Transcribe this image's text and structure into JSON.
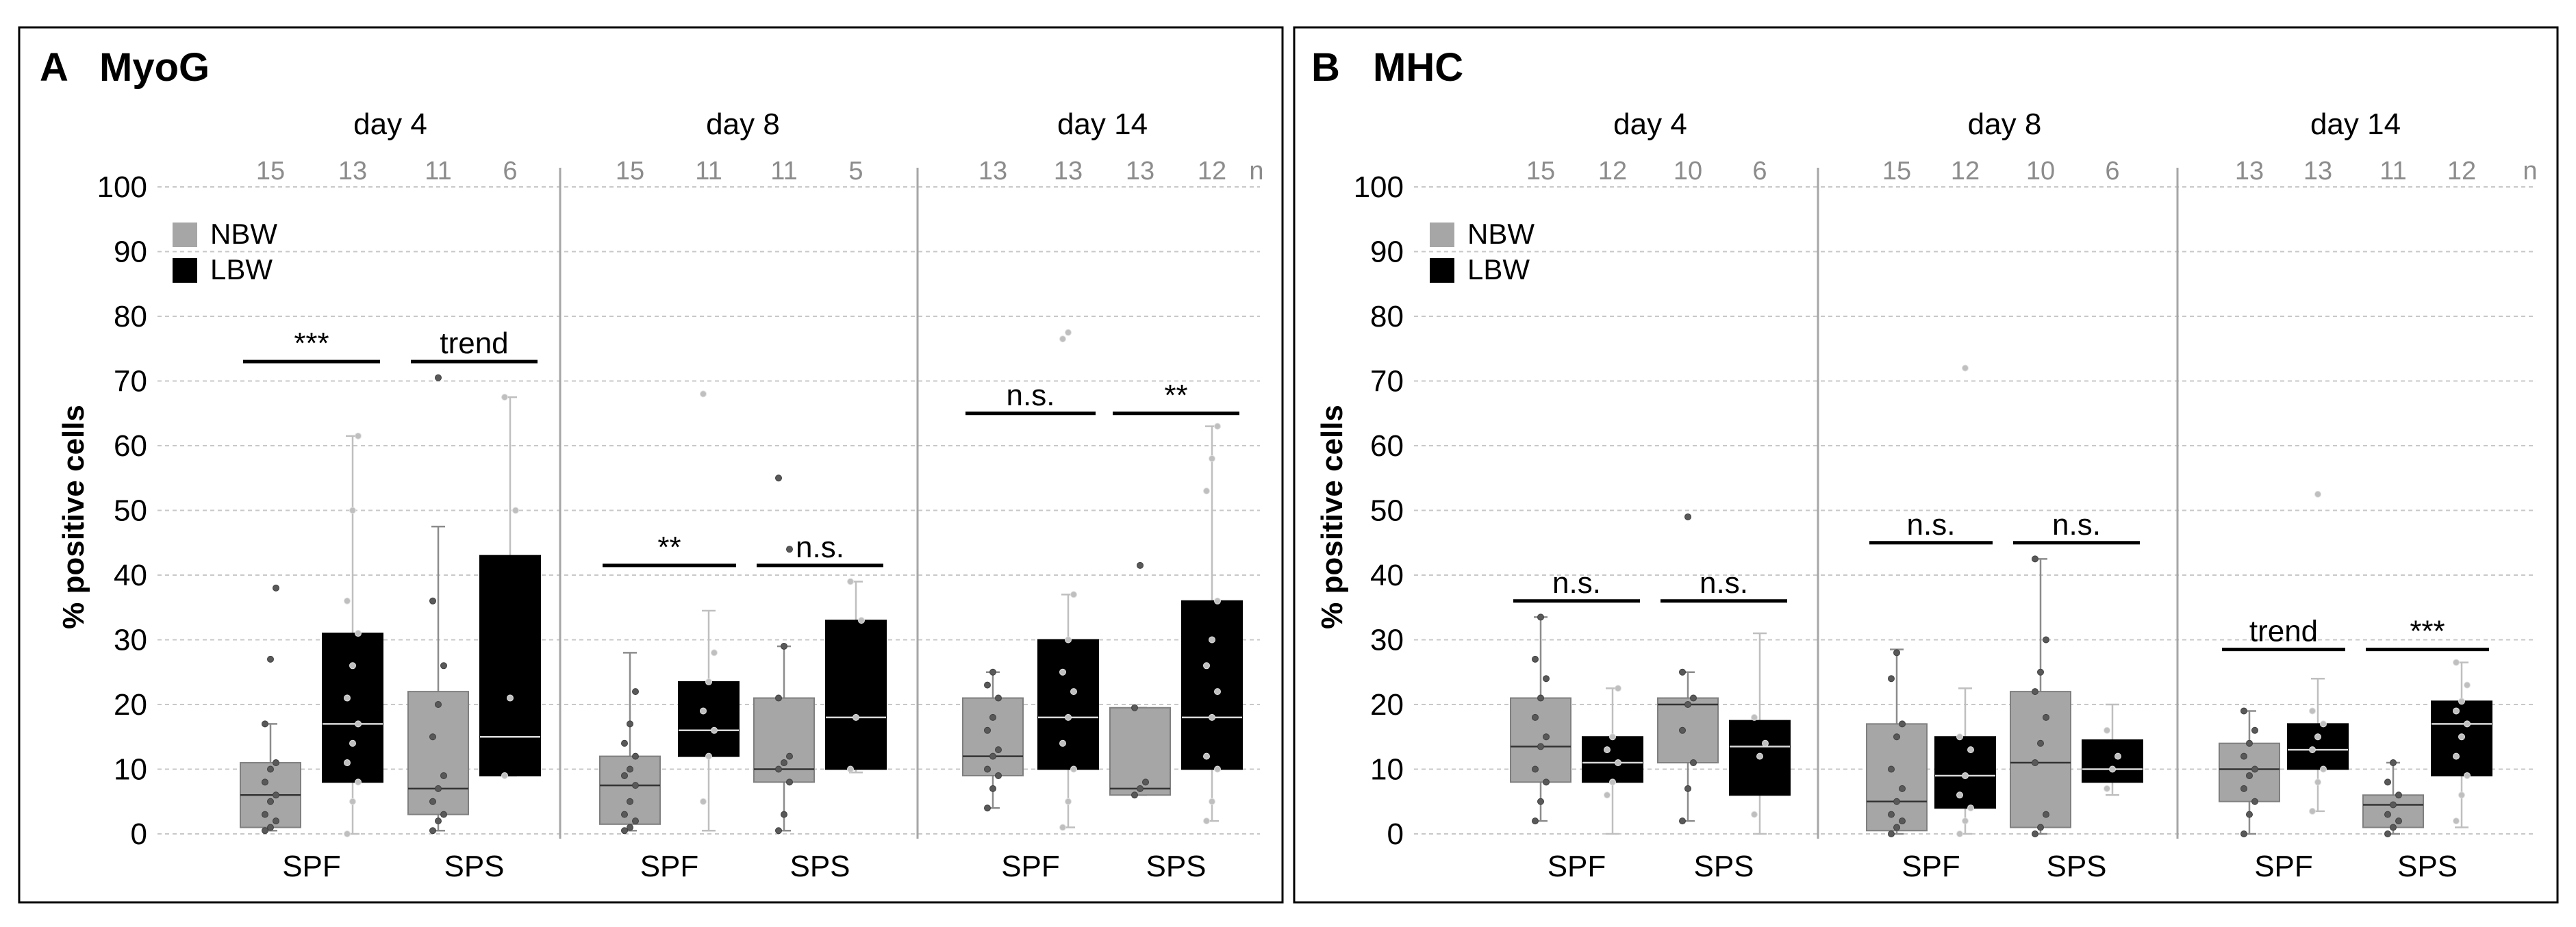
{
  "colors": {
    "nbw": "#a6a6a6",
    "lbw": "#000000",
    "n_label": "#8c8c8c",
    "grid": "#c8c8c8",
    "divider": "#a6a6a6",
    "frame": "#000000"
  },
  "chart_data": [
    {
      "type": "box",
      "panel_letter": "A",
      "title": "MyoG",
      "ylabel": "% positive cells",
      "ylim": [
        0,
        100
      ],
      "yticks": [
        0,
        10,
        20,
        30,
        40,
        50,
        60,
        70,
        80,
        90,
        100
      ],
      "legend": [
        {
          "label": "NBW",
          "color": "#a6a6a6"
        },
        {
          "label": "LBW",
          "color": "#000000"
        }
      ],
      "n_unit": "n",
      "groups": [
        {
          "day": "day 4",
          "pairs": [
            {
              "label": "SPF",
              "significance": "***",
              "sig_y": 73,
              "boxes": [
                {
                  "series": "NBW",
                  "n": "15",
                  "min": 0.5,
                  "q1": 1,
                  "median": 6,
                  "q3": 11,
                  "max": 17,
                  "points": [
                    0.5,
                    1,
                    2,
                    3,
                    5,
                    6,
                    8,
                    10,
                    11,
                    17,
                    27,
                    38
                  ]
                },
                {
                  "series": "LBW",
                  "n": "13",
                  "min": 0,
                  "q1": 8,
                  "median": 17,
                  "q3": 31,
                  "max": 61.5,
                  "points": [
                    0,
                    5,
                    8,
                    11,
                    14,
                    17,
                    21,
                    26,
                    31,
                    36,
                    50,
                    61.5
                  ]
                }
              ]
            },
            {
              "label": "SPS",
              "significance": "trend",
              "sig_y": 73,
              "boxes": [
                {
                  "series": "NBW",
                  "n": "11",
                  "min": 0.5,
                  "q1": 3,
                  "median": 7,
                  "q3": 22,
                  "max": 47.5,
                  "points": [
                    0.5,
                    2,
                    3,
                    5,
                    7,
                    9,
                    15,
                    20,
                    26,
                    36,
                    70.5
                  ]
                },
                {
                  "series": "LBW",
                  "n": "6",
                  "min": 9,
                  "q1": 9,
                  "median": 15,
                  "q3": 43,
                  "max": 67.5,
                  "points": [
                    9,
                    21,
                    50,
                    67.5
                  ]
                }
              ]
            }
          ]
        },
        {
          "day": "day 8",
          "pairs": [
            {
              "label": "SPF",
              "significance": "**",
              "sig_y": 41.5,
              "boxes": [
                {
                  "series": "NBW",
                  "n": "15",
                  "min": 0.5,
                  "q1": 1.5,
                  "median": 7.5,
                  "q3": 12,
                  "max": 28,
                  "points": [
                    0.5,
                    1,
                    2,
                    3,
                    5,
                    7.5,
                    9,
                    10,
                    12,
                    14,
                    17,
                    22
                  ]
                },
                {
                  "series": "LBW",
                  "n": "11",
                  "min": 0.5,
                  "q1": 12,
                  "median": 16,
                  "q3": 23.5,
                  "max": 34.5,
                  "points": [
                    5,
                    12,
                    16,
                    19,
                    23.5,
                    28,
                    68
                  ]
                }
              ]
            },
            {
              "label": "SPS",
              "significance": "n.s.",
              "sig_y": 41.5,
              "boxes": [
                {
                  "series": "NBW",
                  "n": "11",
                  "min": 0.5,
                  "q1": 8,
                  "median": 10,
                  "q3": 21,
                  "max": 29,
                  "points": [
                    0.5,
                    3,
                    8,
                    10,
                    11,
                    12,
                    21,
                    29,
                    44,
                    55
                  ]
                },
                {
                  "series": "LBW",
                  "n": "5",
                  "min": 9.5,
                  "q1": 10,
                  "median": 18,
                  "q3": 33,
                  "max": 39,
                  "points": [
                    10,
                    18,
                    33,
                    39
                  ]
                }
              ]
            }
          ]
        },
        {
          "day": "day 14",
          "pairs": [
            {
              "label": "SPF",
              "significance": "n.s.",
              "sig_y": 65,
              "boxes": [
                {
                  "series": "NBW",
                  "n": "13",
                  "min": 4,
                  "q1": 9,
                  "median": 12,
                  "q3": 21,
                  "max": 25,
                  "points": [
                    4,
                    7,
                    9,
                    10,
                    12,
                    13,
                    16,
                    18,
                    21,
                    23,
                    25
                  ]
                },
                {
                  "series": "LBW",
                  "n": "13",
                  "min": 1,
                  "q1": 10,
                  "median": 18,
                  "q3": 30,
                  "max": 37,
                  "points": [
                    1,
                    5,
                    10,
                    14,
                    18,
                    22,
                    25,
                    30,
                    37,
                    76.5,
                    77.5
                  ]
                }
              ]
            },
            {
              "label": "SPS",
              "significance": "**",
              "sig_y": 65,
              "boxes": [
                {
                  "series": "NBW",
                  "n": "13",
                  "min": 6,
                  "q1": 6,
                  "median": 7,
                  "q3": 19.5,
                  "max": 19.5,
                  "points": [
                    6,
                    7,
                    8,
                    19.5,
                    41.5
                  ]
                },
                {
                  "series": "LBW",
                  "n": "12",
                  "min": 2,
                  "q1": 10,
                  "median": 18,
                  "q3": 36,
                  "max": 63,
                  "points": [
                    2,
                    5,
                    10,
                    12,
                    18,
                    22,
                    26,
                    30,
                    36,
                    53,
                    58,
                    63
                  ]
                }
              ]
            }
          ]
        }
      ]
    },
    {
      "type": "box",
      "panel_letter": "B",
      "title": "MHC",
      "ylabel": "% positive cells",
      "ylim": [
        0,
        100
      ],
      "yticks": [
        0,
        10,
        20,
        30,
        40,
        50,
        60,
        70,
        80,
        90,
        100
      ],
      "legend": [
        {
          "label": "NBW",
          "color": "#a6a6a6"
        },
        {
          "label": "LBW",
          "color": "#000000"
        }
      ],
      "n_unit": "n",
      "groups": [
        {
          "day": "day 4",
          "pairs": [
            {
              "label": "SPF",
              "significance": "n.s.",
              "sig_y": 36,
              "boxes": [
                {
                  "series": "NBW",
                  "n": "15",
                  "min": 2,
                  "q1": 8,
                  "median": 13.5,
                  "q3": 21,
                  "max": 33.5,
                  "points": [
                    2,
                    5,
                    8,
                    10,
                    13.5,
                    15,
                    18,
                    21,
                    24,
                    27,
                    33.5
                  ]
                },
                {
                  "series": "LBW",
                  "n": "12",
                  "min": 0,
                  "q1": 8,
                  "median": 11,
                  "q3": 15,
                  "max": 22.5,
                  "points": [
                    6,
                    8,
                    11,
                    13,
                    15,
                    22.5
                  ]
                }
              ]
            },
            {
              "label": "SPS",
              "significance": "n.s.",
              "sig_y": 36,
              "boxes": [
                {
                  "series": "NBW",
                  "n": "10",
                  "min": 2,
                  "q1": 11,
                  "median": 20,
                  "q3": 21,
                  "max": 25,
                  "points": [
                    2,
                    7,
                    11,
                    16,
                    20,
                    21,
                    25,
                    49
                  ]
                },
                {
                  "series": "LBW",
                  "n": "6",
                  "min": 0,
                  "q1": 6,
                  "median": 13.5,
                  "q3": 17.5,
                  "max": 31,
                  "points": [
                    3,
                    12,
                    14,
                    18
                  ]
                }
              ]
            }
          ]
        },
        {
          "day": "day 8",
          "pairs": [
            {
              "label": "SPF",
              "significance": "n.s.",
              "sig_y": 45,
              "boxes": [
                {
                  "series": "NBW",
                  "n": "15",
                  "min": 0,
                  "q1": 0.5,
                  "median": 5,
                  "q3": 17,
                  "max": 28.5,
                  "points": [
                    0,
                    1,
                    2,
                    3,
                    5,
                    7,
                    10,
                    15,
                    17,
                    24,
                    28
                  ]
                },
                {
                  "series": "LBW",
                  "n": "12",
                  "min": 0,
                  "q1": 4,
                  "median": 9,
                  "q3": 15,
                  "max": 22.5,
                  "points": [
                    0,
                    2,
                    4,
                    6,
                    9,
                    13,
                    15,
                    72
                  ]
                }
              ]
            },
            {
              "label": "SPS",
              "significance": "n.s.",
              "sig_y": 45,
              "boxes": [
                {
                  "series": "NBW",
                  "n": "10",
                  "min": 0,
                  "q1": 1,
                  "median": 11,
                  "q3": 22,
                  "max": 42.5,
                  "points": [
                    0,
                    1,
                    3,
                    11,
                    14,
                    18,
                    22,
                    25,
                    30,
                    42.5
                  ]
                },
                {
                  "series": "LBW",
                  "n": "6",
                  "min": 6,
                  "q1": 8,
                  "median": 10,
                  "q3": 14.5,
                  "max": 20,
                  "points": [
                    7,
                    10,
                    12,
                    16
                  ]
                }
              ]
            }
          ]
        },
        {
          "day": "day 14",
          "pairs": [
            {
              "label": "SPF",
              "significance": "trend",
              "sig_y": 28.5,
              "boxes": [
                {
                  "series": "NBW",
                  "n": "13",
                  "min": 0,
                  "q1": 5,
                  "median": 10,
                  "q3": 14,
                  "max": 19,
                  "points": [
                    0,
                    3,
                    5,
                    7,
                    9,
                    10,
                    12,
                    14,
                    16,
                    19
                  ]
                },
                {
                  "series": "LBW",
                  "n": "13",
                  "min": 3.5,
                  "q1": 10,
                  "median": 13,
                  "q3": 17,
                  "max": 24,
                  "points": [
                    3.5,
                    8,
                    10,
                    13,
                    15,
                    17,
                    19,
                    52.5
                  ]
                }
              ]
            },
            {
              "label": "SPS",
              "significance": "***",
              "sig_y": 28.5,
              "boxes": [
                {
                  "series": "NBW",
                  "n": "11",
                  "min": 0,
                  "q1": 1,
                  "median": 4.5,
                  "q3": 6,
                  "max": 11,
                  "points": [
                    0,
                    1,
                    2,
                    3,
                    4.5,
                    6,
                    8,
                    11
                  ]
                },
                {
                  "series": "LBW",
                  "n": "12",
                  "min": 1,
                  "q1": 9,
                  "median": 17,
                  "q3": 20.5,
                  "max": 26.5,
                  "points": [
                    2,
                    6,
                    9,
                    12,
                    15,
                    17,
                    19,
                    20.5,
                    23,
                    26.5
                  ]
                }
              ]
            }
          ]
        }
      ]
    }
  ]
}
